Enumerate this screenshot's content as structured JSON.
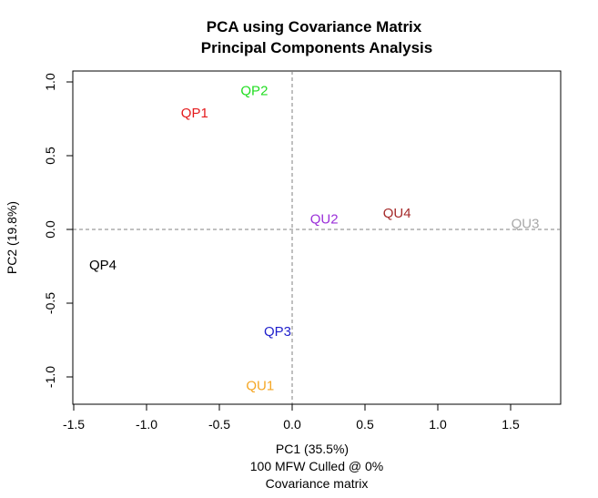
{
  "chart_data": {
    "type": "scatter",
    "title_line1": "PCA using Covariance Matrix",
    "title_line2": "Principal Components Analysis",
    "xlabel": "PC1 (35.5%)",
    "xlabel_line2": "100 MFW  Culled @ 0%",
    "xlabel_line3": "Covariance matrix",
    "ylabel": "PC2 (19.8%)",
    "xlim": [
      -1.5,
      1.85
    ],
    "ylim": [
      -1.18,
      1.08
    ],
    "x_ticks": [
      -1.5,
      -1.0,
      -0.5,
      0.0,
      0.5,
      1.0,
      1.5
    ],
    "x_tick_labels": [
      "-1.5",
      "-1.0",
      "-0.5",
      "0.0",
      "0.5",
      "1.0",
      "1.5"
    ],
    "y_ticks": [
      -1.0,
      -0.5,
      0.0,
      0.5,
      1.0
    ],
    "y_tick_labels": [
      "-1.0",
      "-0.5",
      "0.0",
      "0.5",
      "1.0"
    ],
    "reference_lines": {
      "x": 0,
      "y": 0,
      "style": "dashed",
      "color": "#808080"
    },
    "grid": false,
    "points": [
      {
        "label": "QP1",
        "x": -0.67,
        "y": 0.79,
        "color": "#e41a1c"
      },
      {
        "label": "QP2",
        "x": -0.26,
        "y": 0.94,
        "color": "#22dd22"
      },
      {
        "label": "QP3",
        "x": -0.1,
        "y": -0.69,
        "color": "#1f1fcc"
      },
      {
        "label": "QP4",
        "x": -1.3,
        "y": -0.24,
        "color": "#000000"
      },
      {
        "label": "QU1",
        "x": -0.22,
        "y": -1.06,
        "color": "#f5a623"
      },
      {
        "label": "QU2",
        "x": 0.22,
        "y": 0.07,
        "color": "#9b30d9"
      },
      {
        "label": "QU3",
        "x": 1.6,
        "y": 0.04,
        "color": "#a8a8a8"
      },
      {
        "label": "QU4",
        "x": 0.72,
        "y": 0.11,
        "color": "#a52a2a"
      }
    ]
  }
}
